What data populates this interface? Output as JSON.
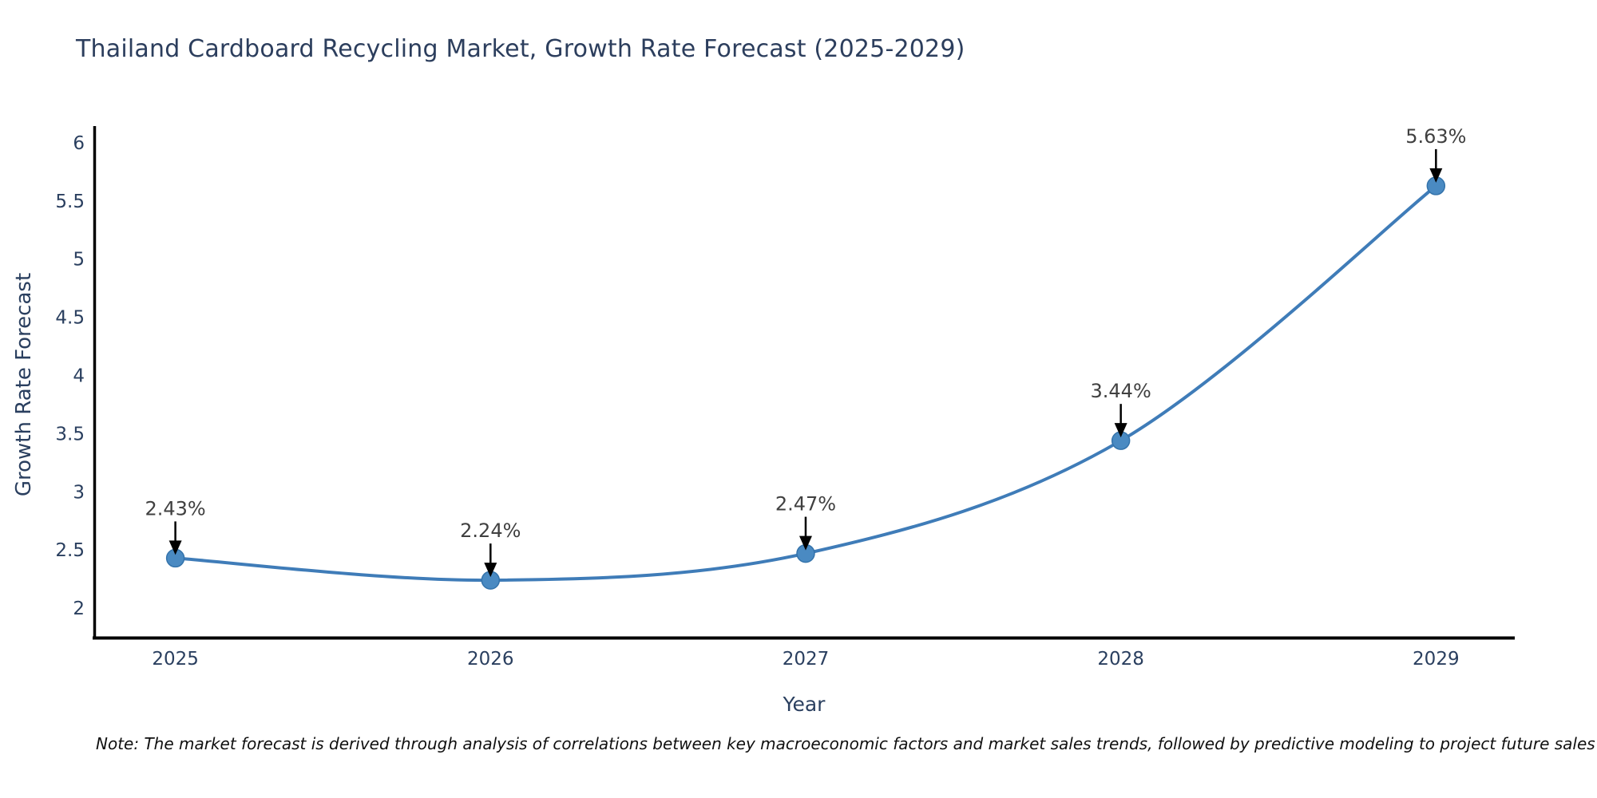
{
  "chart": {
    "title": "Thailand Cardboard Recycling Market, Growth Rate Forecast (2025-2029)",
    "xlabel": "Year",
    "ylabel": "Growth Rate Forecast",
    "note": "Note: The market forecast is derived through analysis of correlations between key macroeconomic factors and market sales trends, followed by predictive modeling to project future sales"
  },
  "chart_data": {
    "type": "line",
    "title": "Thailand Cardboard Recycling Market, Growth Rate Forecast (2025-2029)",
    "xlabel": "Year",
    "ylabel": "Growth Rate Forecast",
    "x": [
      2025,
      2026,
      2027,
      2028,
      2029
    ],
    "x_tick_labels": [
      "2025",
      "2026",
      "2027",
      "2028",
      "2029"
    ],
    "series": [
      {
        "name": "Growth Rate Forecast",
        "values": [
          2.43,
          2.24,
          2.47,
          3.44,
          5.63
        ]
      }
    ],
    "point_labels": [
      "2.43%",
      "2.24%",
      "2.47%",
      "3.44%",
      "5.63%"
    ],
    "yticks": [
      2,
      2.5,
      3,
      3.5,
      4,
      4.5,
      5,
      5.5,
      6
    ],
    "ytick_labels": [
      "2",
      "2.5",
      "3",
      "3.5",
      "4",
      "4.5",
      "5",
      "5.5",
      "6"
    ],
    "ylim": [
      1.74,
      6.13
    ],
    "xlim": [
      2024.74,
      2029.25
    ],
    "grid": false,
    "legend_position": "none",
    "line_shape": "spline",
    "annotation_arrows": true,
    "colors": {
      "line": "#3f7cb8",
      "marker_fill": "#4a8ac2",
      "marker_edge": "#3473ab",
      "annotation_text": "#404040",
      "arrow": "#000000",
      "axis_line": "#000000",
      "tick_text": "#2a3f5f",
      "title_text": "#2c3e5d",
      "note_text": "#101010",
      "background": "#ffffff"
    }
  }
}
